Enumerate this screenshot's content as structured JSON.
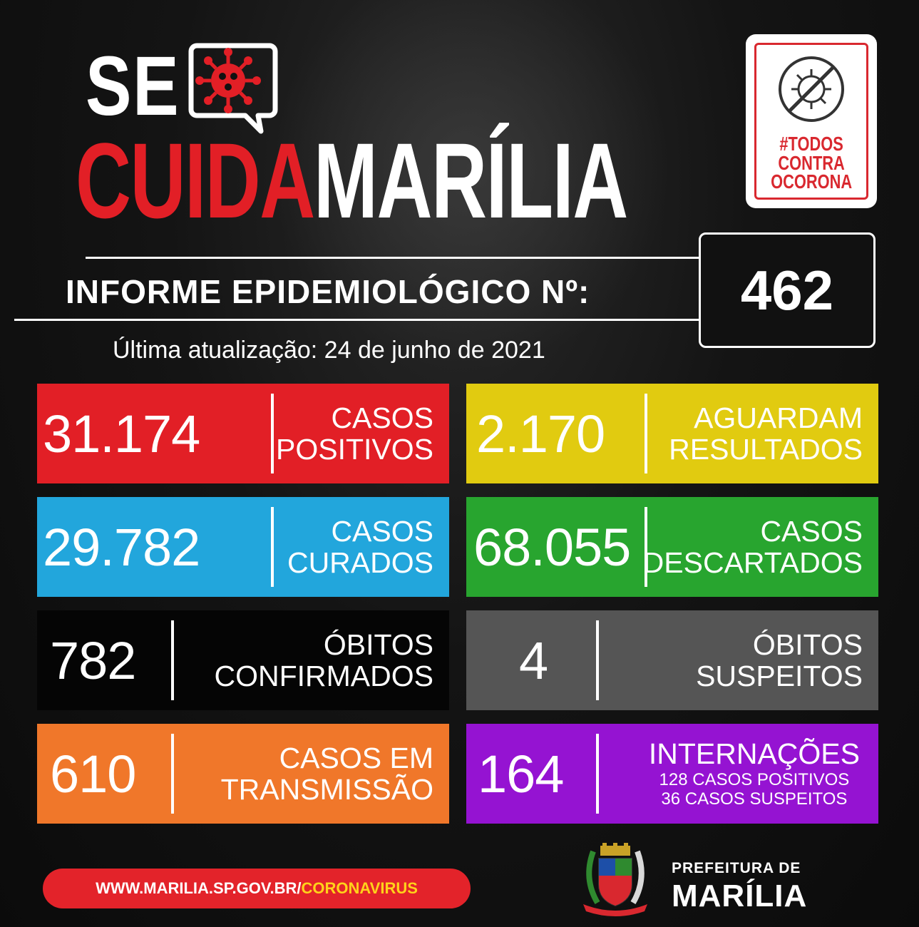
{
  "header": {
    "title_se": "SE",
    "title_cuida": "CUIDA",
    "title_marilia": "MARÍLIA",
    "badge_text_1": "#TODOS",
    "badge_text_2": "CONTRA",
    "badge_text_3": "OCORONA"
  },
  "bulletin": {
    "label": "INFORME EPIDEMIOLÓGICO Nº:",
    "number": "462",
    "updated": "Última atualização: 24 de junho de 2021"
  },
  "stats": {
    "positivos": {
      "value": "31.174",
      "label_1": "CASOS",
      "label_2": "POSITIVOS"
    },
    "aguardam": {
      "value": "2.170",
      "label_1": "AGUARDAM",
      "label_2": "RESULTADOS"
    },
    "curados": {
      "value": "29.782",
      "label_1": "CASOS",
      "label_2": "CURADOS"
    },
    "descartados": {
      "value": "68.055",
      "label_1": "CASOS",
      "label_2": "DESCARTADOS"
    },
    "obitos_confirmados": {
      "value": "782",
      "label_1": "ÓBITOS",
      "label_2": "CONFIRMADOS"
    },
    "obitos_suspeitos": {
      "value": "4",
      "label_1": "ÓBITOS",
      "label_2": "SUSPEITOS"
    },
    "transmissao": {
      "value": "610",
      "label_1": "CASOS EM",
      "label_2": "TRANSMISSÃO"
    },
    "internacoes": {
      "value": "164",
      "label_1": "INTERNAÇÕES",
      "sub_1": "128 CASOS POSITIVOS",
      "sub_2": "36 CASOS SUSPEITOS"
    }
  },
  "footer": {
    "url_main": "WWW.MARILIA.SP.GOV.BR/",
    "url_accent": "CORONAVIRUS",
    "pref_line_1": "PREFEITURA DE",
    "pref_line_2": "MARÍLIA"
  },
  "colors": {
    "red": "#e21f26",
    "yellow": "#e1cb10",
    "blue": "#22a6dc",
    "green": "#28a52f",
    "black": "#050505",
    "gray": "#555555",
    "orange": "#f0772a",
    "purple": "#9513d2"
  },
  "icons": [
    "virus-speech-bubble-icon",
    "crossed-virus-icon",
    "municipal-crest-icon"
  ]
}
